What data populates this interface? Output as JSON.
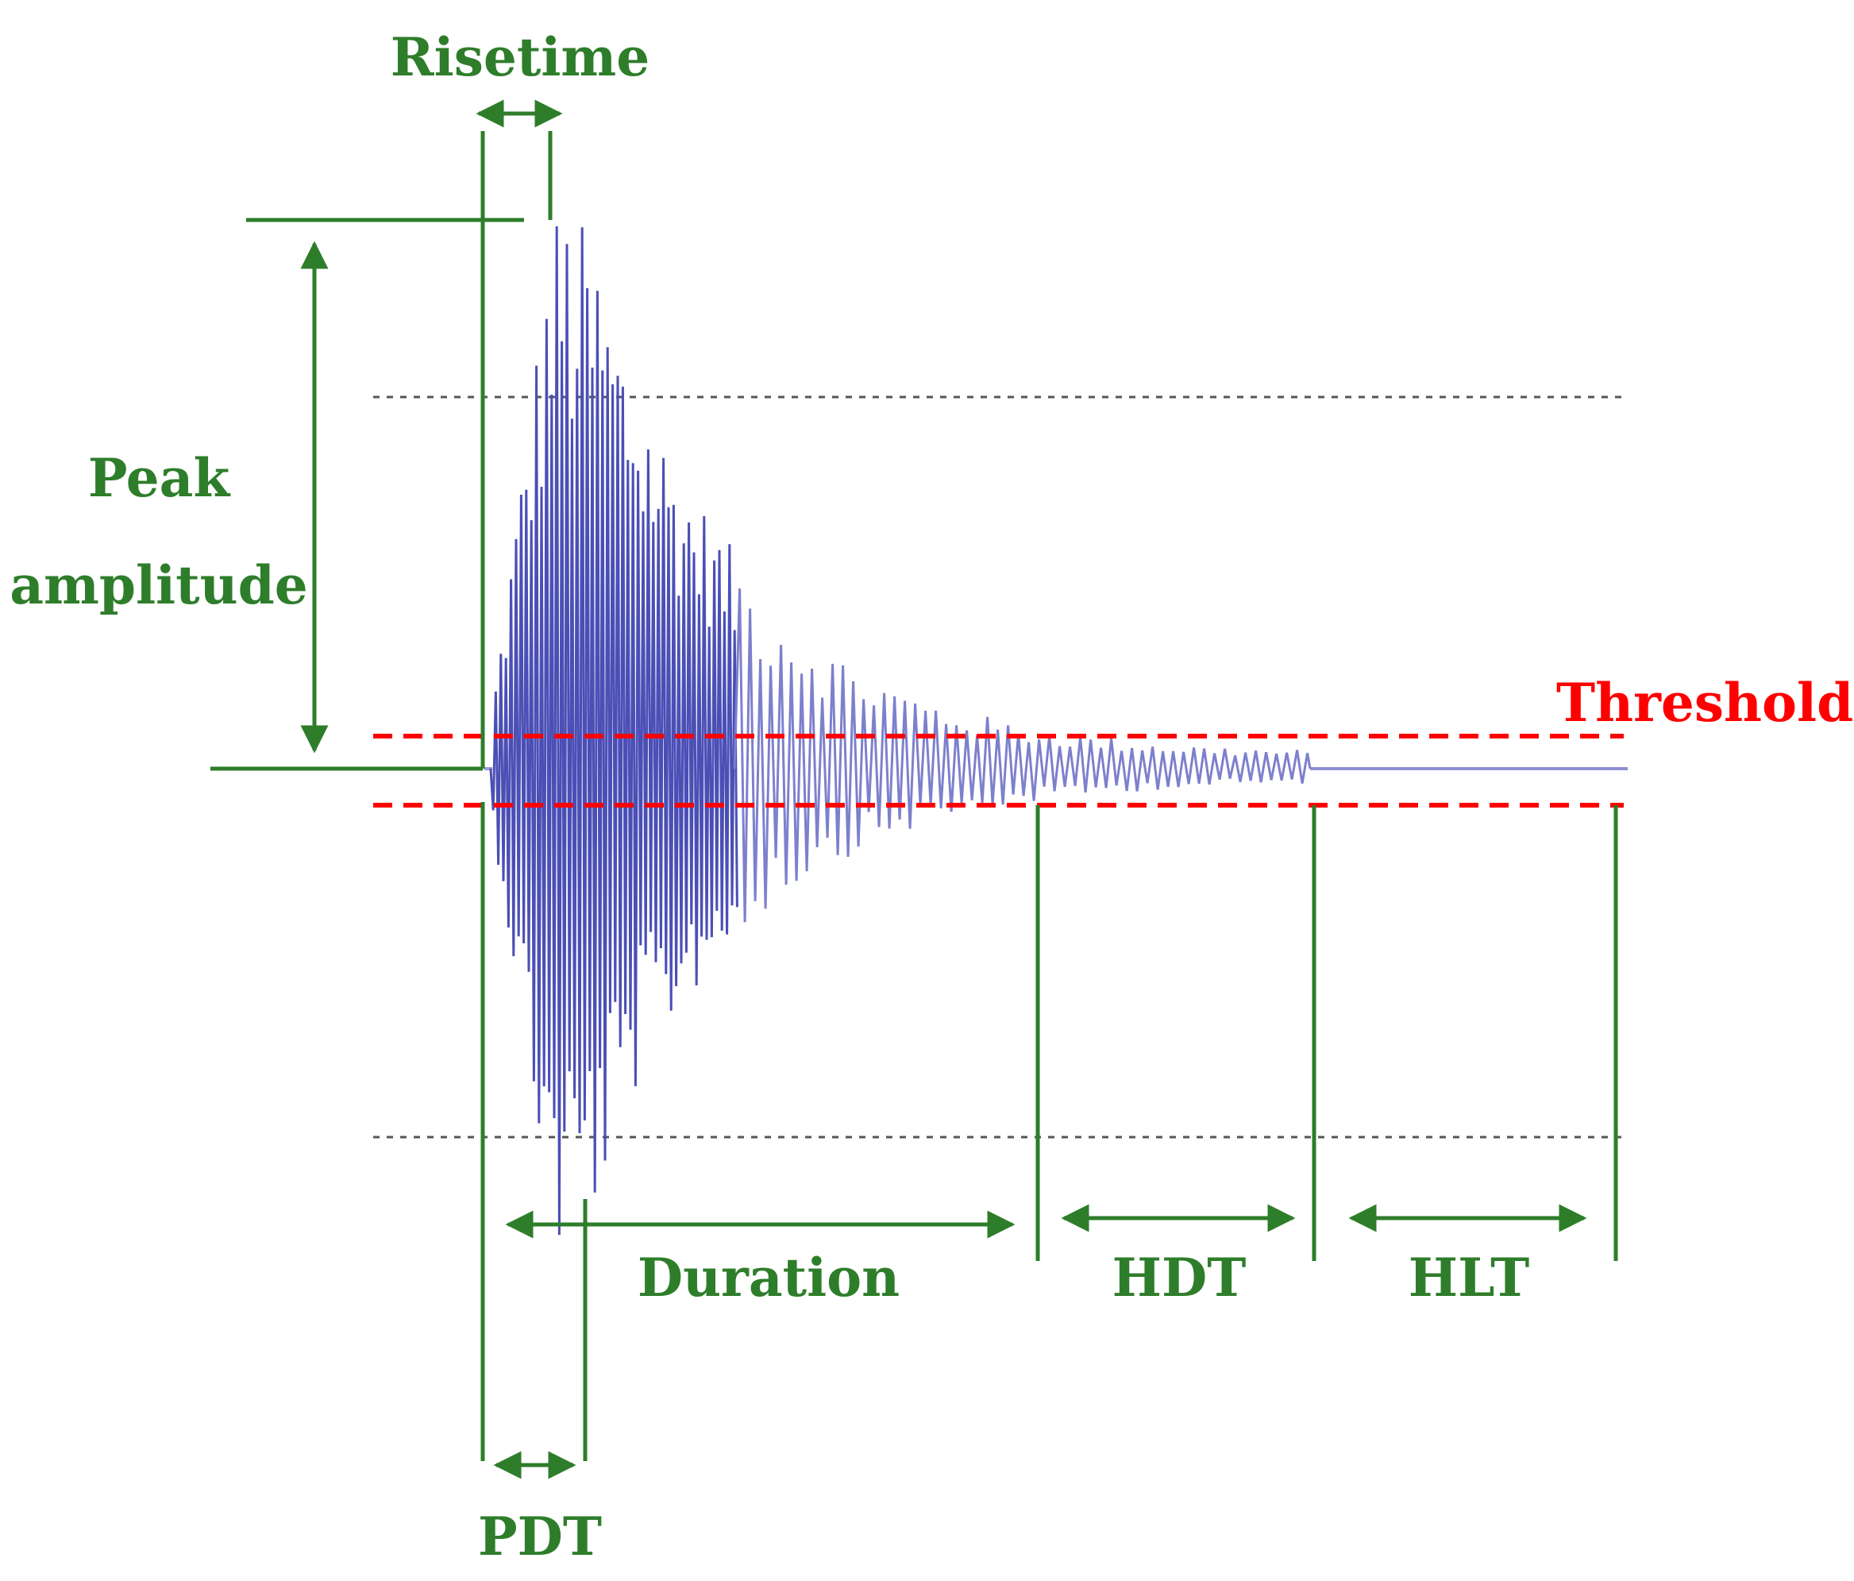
{
  "labels": {
    "risetime": "Risetime",
    "peak_line1": "Peak",
    "peak_line2": "amplitude",
    "threshold": "Threshold",
    "duration": "Duration",
    "hdt": "HDT",
    "hlt": "HLT",
    "pdt": "PDT"
  },
  "colors": {
    "annotation": "#2e7d2a",
    "threshold": "#ff0000",
    "waveform": "#4b4fb5",
    "waveform_light": "#8d8fd3",
    "guide": "#555555",
    "background": "#ffffff"
  }
}
